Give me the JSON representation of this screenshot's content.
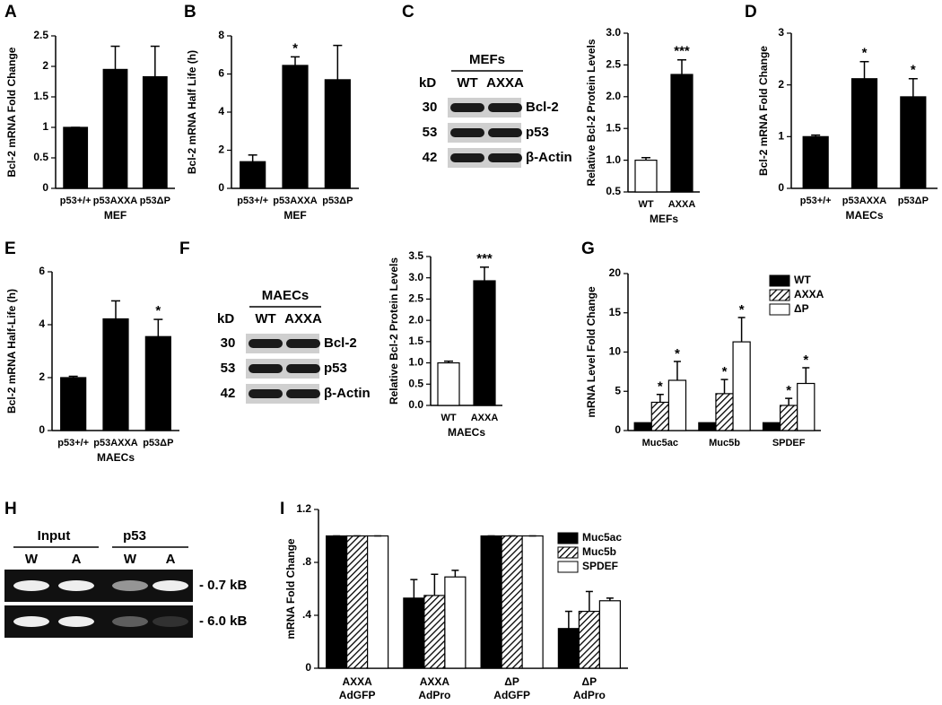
{
  "panel_labels": [
    "A",
    "B",
    "C",
    "D",
    "E",
    "F",
    "G",
    "H",
    "I"
  ],
  "blots": [
    {
      "title": "MEFs",
      "unit": "kD",
      "lanes": [
        "WT",
        "AXXA"
      ],
      "sizes": [
        30,
        53,
        42
      ],
      "proteins": [
        "Bcl-2",
        "p53",
        "β-Actin"
      ]
    },
    {
      "title": "MAECs",
      "unit": "kD",
      "lanes": [
        "WT",
        "AXXA"
      ],
      "sizes": [
        30,
        53,
        42
      ],
      "proteins": [
        "Bcl-2",
        "p53",
        "β-Actin"
      ]
    }
  ],
  "gel": {
    "groups": [
      "Input",
      "p53"
    ],
    "lanes": [
      "W",
      "A",
      "W",
      "A"
    ],
    "bands": [
      "- 0.7 kB",
      "- 6.0 kB"
    ]
  },
  "chart_data": [
    {
      "type": "bar",
      "ylabel": "Bcl-2 mRNA Fold Change",
      "xlabel": "MEF",
      "categories": [
        "p53+/+",
        "p53AXXA",
        "p53ΔP"
      ],
      "values": [
        1.0,
        1.95,
        1.83
      ],
      "errors": [
        0,
        0.38,
        0.5
      ],
      "color": "#000000",
      "ylim": [
        0,
        2.5
      ],
      "yticks": [
        0,
        0.5,
        1,
        1.5,
        2,
        2.5
      ]
    },
    {
      "type": "bar",
      "ylabel": "Bcl-2 mRNA Half Life (h)",
      "xlabel": "MEF",
      "categories": [
        "p53+/+",
        "p53AXXA",
        "p53ΔP"
      ],
      "values": [
        1.4,
        6.45,
        5.7
      ],
      "errors": [
        0.35,
        0.45,
        1.8
      ],
      "annotations": [
        null,
        "*",
        null
      ],
      "color": "#000000",
      "ylim": [
        0,
        8
      ],
      "yticks": [
        0,
        2,
        4,
        6,
        8
      ]
    },
    {
      "type": "bar",
      "ylabel": "Relative Bcl-2 Protein Levels",
      "xlabel": "MEFs",
      "categories": [
        "WT",
        "AXXA"
      ],
      "values": [
        1.0,
        2.35
      ],
      "errors": [
        0.04,
        0.23
      ],
      "annotations": [
        null,
        "***"
      ],
      "colors": [
        "#ffffff",
        "#000000"
      ],
      "ylim": [
        0.5,
        3.0
      ],
      "yticks": [
        0.5,
        {
          "value": 1,
          "label": "1.0"
        },
        1.5,
        {
          "value": 2,
          "label": "2.0"
        },
        2.5,
        {
          "value": 3,
          "label": "3.0"
        }
      ]
    },
    {
      "type": "bar",
      "ylabel": "Bcl-2 mRNA Fold Change",
      "xlabel": "MAECs",
      "categories": [
        "p53+/+",
        "p53AXXA",
        "p53ΔP"
      ],
      "values": [
        1.0,
        2.12,
        1.77
      ],
      "errors": [
        0.03,
        0.33,
        0.35
      ],
      "annotations": [
        null,
        "*",
        "*"
      ],
      "color": "#000000",
      "ylim": [
        0,
        3
      ],
      "yticks": [
        0,
        1,
        2,
        3
      ]
    },
    {
      "type": "bar",
      "ylabel": "Bcl-2 mRNA Half-Life (h)",
      "xlabel": "MAECs",
      "categories": [
        "p53+/+",
        "p53AXXA",
        "p53ΔP"
      ],
      "values": [
        2.0,
        4.22,
        3.55
      ],
      "errors": [
        0.05,
        0.68,
        0.65
      ],
      "annotations": [
        null,
        null,
        "*"
      ],
      "color": "#000000",
      "ylim": [
        0,
        6
      ],
      "yticks": [
        0,
        2,
        4,
        6
      ]
    },
    {
      "type": "bar",
      "ylabel": "Relative Bcl-2 Protein Levels",
      "xlabel": "MAECs",
      "categories": [
        "WT",
        "AXXA"
      ],
      "values": [
        1.0,
        2.93
      ],
      "errors": [
        0.04,
        0.32
      ],
      "annotations": [
        null,
        "***"
      ],
      "colors": [
        "#ffffff",
        "#000000"
      ],
      "ylim": [
        0,
        3.5
      ],
      "yticks": [
        {
          "value": 0,
          "label": "0.0"
        },
        0.5,
        {
          "value": 1,
          "label": "1.0"
        },
        1.5,
        {
          "value": 2,
          "label": "2.0"
        },
        2.5,
        {
          "value": 3,
          "label": "3.0"
        },
        3.5
      ]
    },
    {
      "type": "grouped_bar",
      "ylabel": "mRNA Level Fold Change",
      "legend": "top right",
      "categories": [
        "Muc5ac",
        "Muc5b",
        "SPDEF"
      ],
      "ylim": [
        0,
        20
      ],
      "yticks": [
        0,
        5,
        10,
        15,
        20
      ],
      "series": [
        {
          "name": "WT",
          "color": "#000000",
          "values": [
            1,
            1,
            1
          ]
        },
        {
          "name": "AXXA",
          "color": "#000000",
          "hatched": true,
          "values": [
            3.6,
            4.7,
            3.2
          ],
          "errors": [
            1.0,
            1.8,
            0.9
          ],
          "annotations": [
            "*",
            "*",
            "*"
          ]
        },
        {
          "name": "ΔP",
          "color": "#ffffff",
          "values": [
            6.4,
            11.3,
            6.0
          ],
          "errors": [
            2.4,
            3.1,
            2.0
          ],
          "annotations": [
            "*",
            "*",
            "*"
          ]
        }
      ]
    },
    {
      "type": "grouped_bar",
      "ylabel": "mRNA Fold Change",
      "legend": "top right",
      "categories": [
        [
          "AXXA",
          "AdGFP"
        ],
        [
          "AXXA",
          "AdPro"
        ],
        [
          "ΔP",
          "AdGFP"
        ],
        [
          "ΔP",
          "AdPro"
        ]
      ],
      "ylim": [
        0,
        1.2
      ],
      "yticks": [
        0,
        {
          "value": 0.4,
          "label": ".4"
        },
        {
          "value": 0.8,
          "label": ".8"
        },
        1.2
      ],
      "series": [
        {
          "name": "Muc5ac",
          "color": "#000000",
          "values": [
            1,
            0.53,
            1,
            0.3
          ],
          "errors": [
            0,
            0.14,
            0,
            0.13
          ]
        },
        {
          "name": "Muc5b",
          "color": "#000000",
          "hatched": true,
          "values": [
            1,
            0.55,
            1,
            0.43
          ],
          "errors": [
            0,
            0.16,
            0,
            0.15
          ]
        },
        {
          "name": "SPDEF",
          "color": "#ffffff",
          "values": [
            1,
            0.69,
            1,
            0.51
          ],
          "errors": [
            0,
            0.05,
            0,
            0.02
          ]
        }
      ]
    }
  ]
}
